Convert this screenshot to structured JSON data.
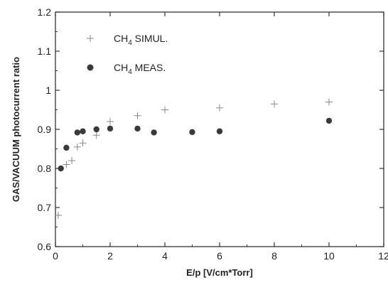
{
  "chart_data": {
    "type": "scatter",
    "xlabel": "E/p [V/cm*Torr]",
    "ylabel": "GAS/VACUUM photocurrent ratio",
    "xlim": [
      0,
      12
    ],
    "ylim": [
      0.6,
      1.2
    ],
    "x_ticks": [
      "0",
      "2",
      "4",
      "6",
      "8",
      "10",
      "12"
    ],
    "y_ticks": [
      "0.6",
      "0.7",
      "0.8",
      "0.9",
      "1",
      "1.1",
      "1.2"
    ],
    "grid": false,
    "legend_position": "top-left",
    "series": [
      {
        "name": "CH4 SIMUL.",
        "legend_main": "CH",
        "legend_sub": "4",
        "legend_rest": " SIMUL.",
        "marker": "plus",
        "color": "#888888",
        "points": [
          {
            "x": 0.1,
            "y": 0.68
          },
          {
            "x": 0.4,
            "y": 0.81
          },
          {
            "x": 0.6,
            "y": 0.82
          },
          {
            "x": 0.8,
            "y": 0.855
          },
          {
            "x": 1.0,
            "y": 0.865
          },
          {
            "x": 1.5,
            "y": 0.885
          },
          {
            "x": 2.0,
            "y": 0.92
          },
          {
            "x": 3.0,
            "y": 0.935
          },
          {
            "x": 4.0,
            "y": 0.95
          },
          {
            "x": 6.0,
            "y": 0.955
          },
          {
            "x": 8.0,
            "y": 0.965
          },
          {
            "x": 10.0,
            "y": 0.97
          }
        ]
      },
      {
        "name": "CH4 MEAS.",
        "legend_main": "CH",
        "legend_sub": "4",
        "legend_rest": " MEAS.",
        "marker": "circle",
        "color": "#3a3a3a",
        "points": [
          {
            "x": 0.2,
            "y": 0.8
          },
          {
            "x": 0.4,
            "y": 0.853
          },
          {
            "x": 0.8,
            "y": 0.892
          },
          {
            "x": 1.0,
            "y": 0.895
          },
          {
            "x": 1.5,
            "y": 0.9
          },
          {
            "x": 2.0,
            "y": 0.902
          },
          {
            "x": 3.0,
            "y": 0.902
          },
          {
            "x": 3.6,
            "y": 0.892
          },
          {
            "x": 5.0,
            "y": 0.893
          },
          {
            "x": 6.0,
            "y": 0.895
          },
          {
            "x": 10.0,
            "y": 0.922
          }
        ]
      }
    ]
  }
}
